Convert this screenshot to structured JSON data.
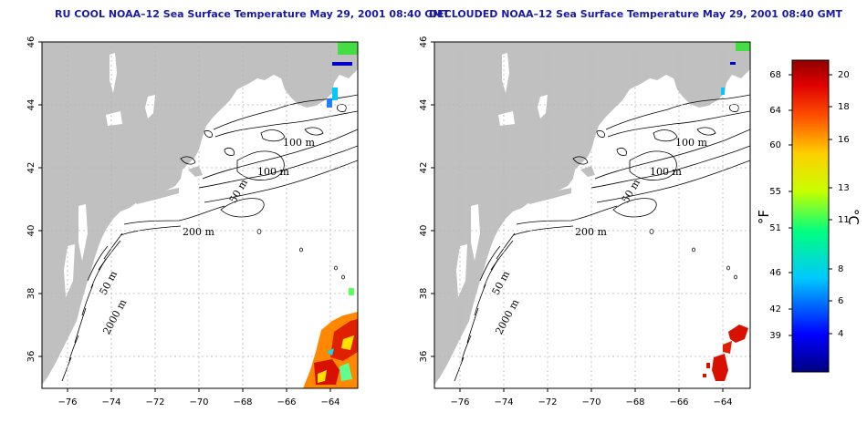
{
  "titles": {
    "left": "RU COOL NOAA–12 Sea Surface Temperature May 29, 2001 08:40 GMT",
    "right": "DECLOUDED NOAA–12 Sea Surface Temperature May 29, 2001 08:40 GMT"
  },
  "axes": {
    "lat_ticks": [
      "46",
      "44",
      "42",
      "40",
      "38",
      "36"
    ],
    "lon_ticks": [
      "−76",
      "−74",
      "−72",
      "−70",
      "−68",
      "−66",
      "−64"
    ]
  },
  "contour_labels": {
    "left": [
      "100 m",
      "100 m",
      "50 m",
      "200 m",
      "50 m",
      "2000 m"
    ],
    "right": [
      "100 m",
      "100 m",
      "50 m",
      "200 m",
      "50 m",
      "2000 m"
    ]
  },
  "colorbar": {
    "fahrenheit_unit": "°F",
    "celsius_unit": "°C",
    "fahrenheit_ticks": [
      "68",
      "64",
      "60",
      "55",
      "51",
      "46",
      "42",
      "39"
    ],
    "celsius_ticks": [
      "20",
      "18",
      "16",
      "13",
      "11",
      "8",
      "6",
      "4"
    ]
  },
  "colors": {
    "land": "#c0c0c0",
    "ocean": "#ffffff",
    "title": "#1a1aa8",
    "grid": "#b5b5b5"
  }
}
